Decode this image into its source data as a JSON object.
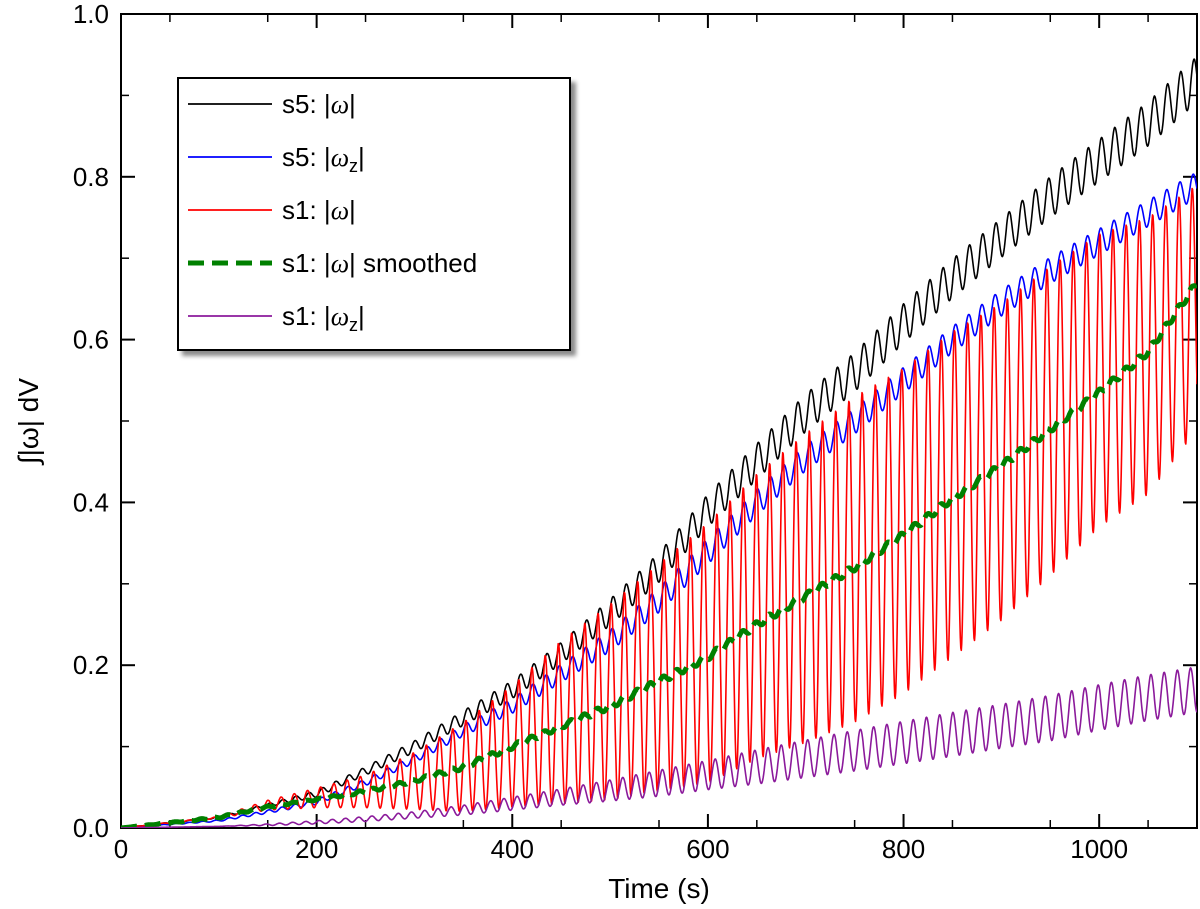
{
  "chart_data": {
    "type": "line",
    "xlabel": "Time (s)",
    "ylabel": "∫|ω| dV",
    "xlim": [
      0,
      1100
    ],
    "ylim": [
      0,
      1.0
    ],
    "x_ticks": [
      0,
      200,
      400,
      600,
      800,
      1000
    ],
    "x_tick_labels": [
      "0",
      "200",
      "400",
      "600",
      "800",
      "1000"
    ],
    "y_ticks": [
      0.0,
      0.2,
      0.4,
      0.6,
      0.8,
      1.0
    ],
    "y_tick_labels": [
      "0.0",
      "0.2",
      "0.4",
      "0.6",
      "0.8",
      "1.0"
    ],
    "legend_position": "top-left",
    "oscillation_period_s": 13.5,
    "series": [
      {
        "name": "s5: |ω|",
        "label_prefix": "s5: ",
        "label_symbol": "ω",
        "label_subscript": "",
        "label_suffix": "",
        "color": "#000000",
        "style": "solid",
        "x": [
          0,
          100,
          150,
          200,
          250,
          300,
          350,
          400,
          450,
          500,
          550,
          600,
          650,
          700,
          750,
          800,
          850,
          900,
          950,
          1000,
          1050,
          1100
        ],
        "y": [
          0.0,
          0.013,
          0.028,
          0.042,
          0.07,
          0.1,
          0.135,
          0.17,
          0.215,
          0.265,
          0.32,
          0.39,
          0.45,
          0.51,
          0.56,
          0.62,
          0.675,
          0.725,
          0.775,
          0.82,
          0.865,
          0.92
        ],
        "amplitude": [
          0,
          0.001,
          0.002,
          0.004,
          0.005,
          0.007,
          0.009,
          0.011,
          0.013,
          0.016,
          0.018,
          0.02,
          0.022,
          0.023,
          0.024,
          0.024,
          0.024,
          0.024,
          0.025,
          0.026,
          0.027,
          0.028
        ]
      },
      {
        "name": "s5: |ω_z|",
        "label_prefix": "s5: ",
        "label_symbol": "ω",
        "label_subscript": "z",
        "label_suffix": "",
        "color": "#0000ff",
        "style": "solid",
        "x": [
          0,
          100,
          150,
          200,
          250,
          300,
          350,
          400,
          450,
          500,
          550,
          600,
          650,
          700,
          750,
          800,
          850,
          900,
          950,
          1000,
          1050,
          1100
        ],
        "y": [
          0.0,
          0.009,
          0.02,
          0.032,
          0.056,
          0.085,
          0.12,
          0.15,
          0.19,
          0.23,
          0.28,
          0.34,
          0.4,
          0.455,
          0.5,
          0.55,
          0.6,
          0.645,
          0.685,
          0.72,
          0.755,
          0.79
        ],
        "amplitude": [
          0,
          0.001,
          0.002,
          0.003,
          0.004,
          0.005,
          0.007,
          0.009,
          0.011,
          0.013,
          0.015,
          0.016,
          0.016,
          0.016,
          0.016,
          0.016,
          0.016,
          0.016,
          0.016,
          0.016,
          0.016,
          0.016
        ]
      },
      {
        "name": "s1: |ω|",
        "label_prefix": "s1: ",
        "label_symbol": "ω",
        "label_subscript": "",
        "label_suffix": "",
        "color": "#ff0000",
        "style": "solid",
        "x": [
          0,
          100,
          150,
          200,
          250,
          300,
          350,
          400,
          450,
          500,
          550,
          600,
          650,
          700,
          750,
          800,
          850,
          900,
          950,
          1000,
          1050,
          1100
        ],
        "y": [
          0.0,
          0.013,
          0.028,
          0.037,
          0.045,
          0.058,
          0.075,
          0.1,
          0.13,
          0.155,
          0.185,
          0.215,
          0.26,
          0.295,
          0.33,
          0.365,
          0.41,
          0.45,
          0.5,
          0.55,
          0.58,
          0.64
        ],
        "amplitude": [
          0,
          0.001,
          0.006,
          0.012,
          0.02,
          0.035,
          0.055,
          0.075,
          0.1,
          0.12,
          0.14,
          0.16,
          0.175,
          0.19,
          0.2,
          0.2,
          0.2,
          0.195,
          0.19,
          0.18,
          0.17,
          0.15
        ]
      },
      {
        "name": "s1: |ω| smoothed",
        "label_prefix": "s1: ",
        "label_symbol": "ω",
        "label_subscript": "",
        "label_suffix": " smoothed",
        "color": "#008000",
        "style": "dashed",
        "x": [
          0,
          100,
          150,
          200,
          250,
          300,
          350,
          400,
          450,
          500,
          550,
          600,
          650,
          700,
          750,
          800,
          850,
          900,
          950,
          1000,
          1050,
          1100
        ],
        "y": [
          0.0,
          0.013,
          0.026,
          0.035,
          0.045,
          0.058,
          0.075,
          0.1,
          0.125,
          0.15,
          0.18,
          0.21,
          0.25,
          0.285,
          0.32,
          0.36,
          0.405,
          0.445,
          0.49,
          0.535,
          0.585,
          0.67
        ],
        "amplitude": [
          0,
          0.001,
          0.001,
          0.001,
          0.002,
          0.002,
          0.003,
          0.003,
          0.003,
          0.004,
          0.004,
          0.004,
          0.004,
          0.004,
          0.004,
          0.004,
          0.004,
          0.004,
          0.004,
          0.004,
          0.004,
          0.004
        ]
      },
      {
        "name": "s1: |ω_z|",
        "label_prefix": "s1: ",
        "label_symbol": "ω",
        "label_subscript": "z",
        "label_suffix": "",
        "color": "#8b1a9b",
        "style": "solid",
        "x": [
          0,
          100,
          150,
          200,
          250,
          300,
          350,
          400,
          450,
          500,
          550,
          600,
          650,
          700,
          750,
          800,
          850,
          900,
          950,
          1000,
          1050,
          1100
        ],
        "y": [
          0.0,
          0.002,
          0.004,
          0.007,
          0.011,
          0.016,
          0.022,
          0.03,
          0.038,
          0.046,
          0.055,
          0.065,
          0.075,
          0.085,
          0.095,
          0.105,
          0.115,
          0.125,
          0.135,
          0.148,
          0.16,
          0.17
        ],
        "amplitude": [
          0,
          0,
          0.001,
          0.002,
          0.003,
          0.004,
          0.006,
          0.008,
          0.01,
          0.013,
          0.016,
          0.018,
          0.021,
          0.023,
          0.025,
          0.026,
          0.027,
          0.027,
          0.028,
          0.028,
          0.028,
          0.028
        ]
      }
    ]
  }
}
